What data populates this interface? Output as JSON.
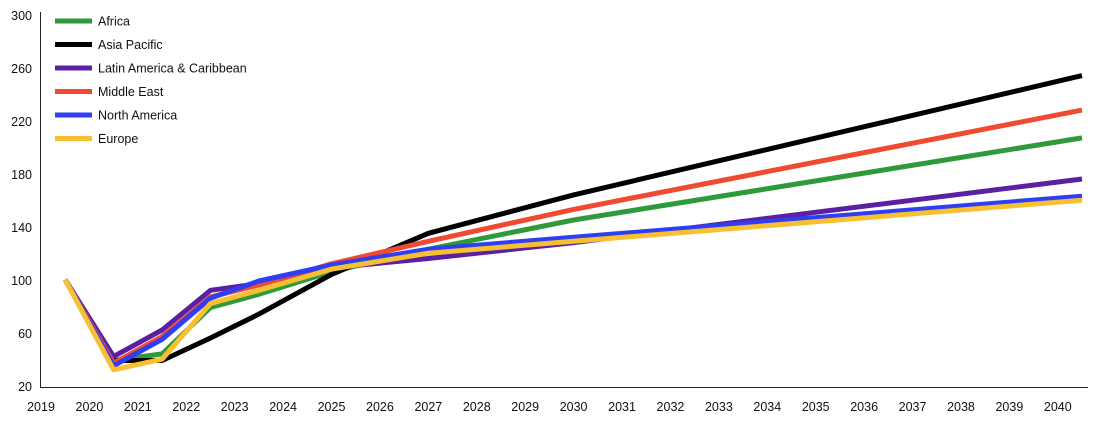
{
  "chart_data": {
    "type": "line",
    "title": "",
    "xlabel": "",
    "ylabel": "",
    "ylim": [
      20,
      300
    ],
    "yticks": [
      "300",
      "260",
      "220",
      "180",
      "140",
      "100",
      "60",
      "20"
    ],
    "xticks": [
      "2019",
      "2020",
      "2021",
      "2022",
      "2023",
      "2024",
      "2025",
      "2026",
      "2027",
      "2028",
      "2029",
      "2030",
      "2031",
      "2032",
      "2033",
      "2034",
      "2035",
      "2036",
      "2037",
      "2038",
      "2039",
      "2040"
    ],
    "x": [
      2019.5,
      2020.5,
      2021.5,
      2022.5,
      2023.5,
      2025,
      2027,
      2030,
      2040.5
    ],
    "legend_position": "top-left",
    "series": [
      {
        "name": "Africa",
        "color": "#2f9a3a",
        "values": [
          101,
          40,
          45,
          80,
          90,
          107,
          124,
          146,
          208
        ]
      },
      {
        "name": "Asia Pacific",
        "color": "#000000",
        "values": [
          101,
          40,
          40,
          57,
          75,
          105,
          136,
          165,
          255
        ]
      },
      {
        "name": "Latin America & Caribbean",
        "color": "#5b1fa3",
        "values": [
          101,
          43,
          63,
          93,
          98,
          110,
          117,
          129,
          177
        ]
      },
      {
        "name": "Middle East",
        "color": "#f04a32",
        "values": [
          101,
          38,
          58,
          88,
          97,
          113,
          130,
          154,
          229
        ]
      },
      {
        "name": "North America",
        "color": "#2f3ef0",
        "values": [
          101,
          36,
          56,
          87,
          100,
          112,
          124,
          133,
          164
        ]
      },
      {
        "name": "Europe",
        "color": "#f7c033",
        "values": [
          101,
          33,
          41,
          83,
          93,
          109,
          121,
          130,
          161
        ]
      }
    ]
  }
}
